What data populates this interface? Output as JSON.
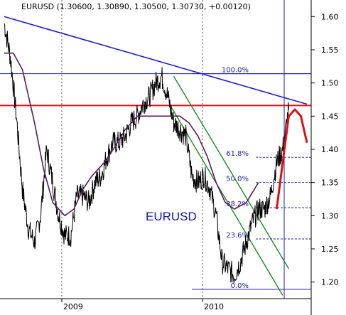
{
  "chart_data": {
    "type": "line",
    "title": "EURUSD (1.30600, 1.30890, 1.30500, 1.30730, +0.00120)",
    "annotation": "EURUSD",
    "ylim": [
      1.175,
      1.625
    ],
    "yticks": [
      "1.20",
      "1.25",
      "1.30",
      "1.35",
      "1.40",
      "1.45",
      "1.50",
      "1.55",
      "1.60"
    ],
    "xticks": [
      "2009",
      "2010"
    ],
    "grid": true,
    "colors": {
      "price": "#000000",
      "moving_average": "#5a1a5a",
      "trendline": "#1a1ad6",
      "horizontal": "#e01010",
      "channel": "#1c8a1c",
      "forecast": "#e01010",
      "fib": "#1a1ab0"
    },
    "series": [
      {
        "t": [
          0,
          0.02,
          0.04,
          0.06,
          0.08,
          0.1,
          0.12,
          0.14,
          0.16,
          0.18,
          0.2,
          0.22,
          0.24,
          0.26,
          0.28,
          0.3,
          0.32,
          0.34,
          0.36,
          0.38,
          0.4,
          0.42,
          0.44,
          0.46,
          0.48,
          0.5,
          0.52,
          0.54,
          0.56,
          0.58,
          0.6,
          0.62,
          0.64,
          0.66,
          0.68,
          0.7,
          0.72,
          0.74,
          0.76,
          0.78,
          0.8,
          0.82,
          0.84,
          0.86,
          0.88,
          0.9,
          0.92,
          0.94
        ],
        "values": [
          1.59,
          1.54,
          1.45,
          1.34,
          1.28,
          1.26,
          1.3,
          1.4,
          1.35,
          1.3,
          1.27,
          1.27,
          1.33,
          1.33,
          1.32,
          1.35,
          1.36,
          1.39,
          1.41,
          1.41,
          1.42,
          1.44,
          1.45,
          1.47,
          1.48,
          1.5,
          1.51,
          1.48,
          1.44,
          1.43,
          1.42,
          1.36,
          1.35,
          1.36,
          1.34,
          1.3,
          1.23,
          1.22,
          1.21,
          1.23,
          1.26,
          1.29,
          1.31,
          1.31,
          1.33,
          1.38,
          1.4,
          1.46
        ]
      },
      {
        "t": [
          0,
          0.03,
          0.06,
          0.1,
          0.13,
          0.16,
          0.2,
          0.23,
          0.26,
          0.29,
          0.33,
          0.36,
          0.4,
          0.44,
          0.48,
          0.52,
          0.56,
          0.58,
          0.61,
          0.64,
          0.67,
          0.7,
          0.73,
          0.76,
          0.8,
          0.84
        ],
        "values": [
          1.545,
          1.545,
          1.52,
          1.44,
          1.37,
          1.32,
          1.3,
          1.31,
          1.34,
          1.36,
          1.38,
          1.4,
          1.43,
          1.45,
          1.45,
          1.45,
          1.45,
          1.45,
          1.44,
          1.42,
          1.39,
          1.35,
          1.32,
          1.31,
          1.32,
          1.35
        ]
      }
    ],
    "fibonacci": [
      {
        "label": "100.0%",
        "value": 1.514
      },
      {
        "label": "61.8%",
        "value": 1.388
      },
      {
        "label": "50.0%",
        "value": 1.35
      },
      {
        "label": "38.2%",
        "value": 1.312
      },
      {
        "label": "23.6%",
        "value": 1.265
      },
      {
        "label": "0.0%",
        "value": 1.189
      }
    ],
    "horizontal_levels": [
      1.466,
      1.514,
      1.189
    ],
    "trendline": {
      "start": [
        0.0,
        1.6
      ],
      "end": [
        1.0,
        1.468
      ]
    },
    "channel": [
      {
        "start": [
          0.56,
          1.51
        ],
        "end": [
          0.94,
          1.22
        ]
      },
      {
        "start": [
          0.55,
          1.465
        ],
        "end": [
          0.92,
          1.18
        ]
      }
    ],
    "forecast": {
      "t": [
        0.9,
        0.92,
        0.94,
        0.96,
        0.98,
        1.0
      ],
      "values": [
        1.31,
        1.38,
        1.45,
        1.46,
        1.45,
        1.41
      ]
    }
  }
}
